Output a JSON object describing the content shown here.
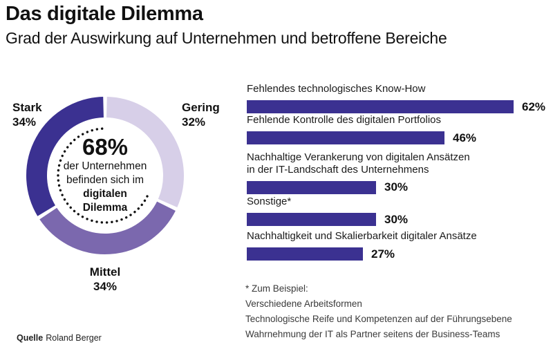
{
  "header": {
    "title": "Das digitale Dilemma",
    "subtitle": "Grad der Auswirkung auf Unternehmen und betroffene Bereiche"
  },
  "colors": {
    "dark": "#3b3191",
    "medium": "#7b68ae",
    "light": "#d7cfe8",
    "dot": "#111111"
  },
  "donut": {
    "segments": [
      {
        "label": "Gering",
        "value": 32,
        "color": "#d7cfe8"
      },
      {
        "label": "Mittel",
        "value": 34,
        "color": "#7b68ae"
      },
      {
        "label": "Stark",
        "value": 34,
        "color": "#3b3191"
      }
    ],
    "dotted_arc_percent": 68,
    "labels": {
      "stark": {
        "name": "Stark",
        "pct": "34%"
      },
      "gering": {
        "name": "Gering",
        "pct": "32%"
      },
      "mittel": {
        "name": "Mittel",
        "pct": "34%"
      }
    },
    "center": {
      "big": "68%",
      "line1": "der Unternehmen",
      "line2": "befinden sich im",
      "line3": "digitalen",
      "line4": "Dilemma"
    }
  },
  "bar_chart": {
    "items": [
      {
        "label": "Fehlendes technologisches Know-How",
        "label2": "",
        "value": 62,
        "pct": "62%"
      },
      {
        "label": "Fehlende Kontrolle des digitalen Portfolios",
        "label2": "",
        "value": 46,
        "pct": "46%"
      },
      {
        "label": "Nachhaltige Verankerung von digitalen Ansätzen",
        "label2": "in der IT-Landschaft des Unternehmens",
        "value": 30,
        "pct": "30%"
      },
      {
        "label": "Sonstige*",
        "label2": "",
        "value": 30,
        "pct": "30%"
      },
      {
        "label": "Nachhaltigkeit und Skalierbarkeit digitaler Ansätze",
        "label2": "",
        "value": 27,
        "pct": "27%"
      }
    ]
  },
  "footnote": {
    "line1": "* Zum Beispiel:",
    "line2": "Verschiedene Arbeitsformen",
    "line3": "Technologische Reife und Kompetenzen auf der Führungsebene",
    "line4": "Wahrnehmung der IT als Partner seitens der Business-Teams"
  },
  "source": {
    "label": "Quelle",
    "name": "Roland Berger"
  },
  "chart_data": [
    {
      "type": "pie",
      "subtype": "donut",
      "title": "Das digitale Dilemma",
      "subtitle": "Grad der Auswirkung auf Unternehmen und betroffene Bereiche",
      "categories": [
        "Stark",
        "Mittel",
        "Gering"
      ],
      "values": [
        34,
        34,
        32
      ],
      "unit": "%",
      "colors": [
        "#3b3191",
        "#7b68ae",
        "#d7cfe8"
      ],
      "center_annotation": "68% der Unternehmen befinden sich im digitalen Dilemma",
      "annotation_arc_percent": 68
    },
    {
      "type": "bar",
      "orientation": "horizontal",
      "title": "Betroffene Bereiche",
      "categories": [
        "Fehlendes technologisches Know-How",
        "Fehlende Kontrolle des digitalen Portfolios",
        "Nachhaltige Verankerung von digitalen Ansätzen in der IT-Landschaft des Unternehmens",
        "Sonstige*",
        "Nachhaltigkeit und Skalierbarkeit digitaler Ansätze"
      ],
      "values": [
        62,
        46,
        30,
        30,
        27
      ],
      "unit": "%",
      "xlim": [
        0,
        100
      ],
      "bar_color": "#3b3191",
      "grid": false,
      "legend": false
    }
  ]
}
